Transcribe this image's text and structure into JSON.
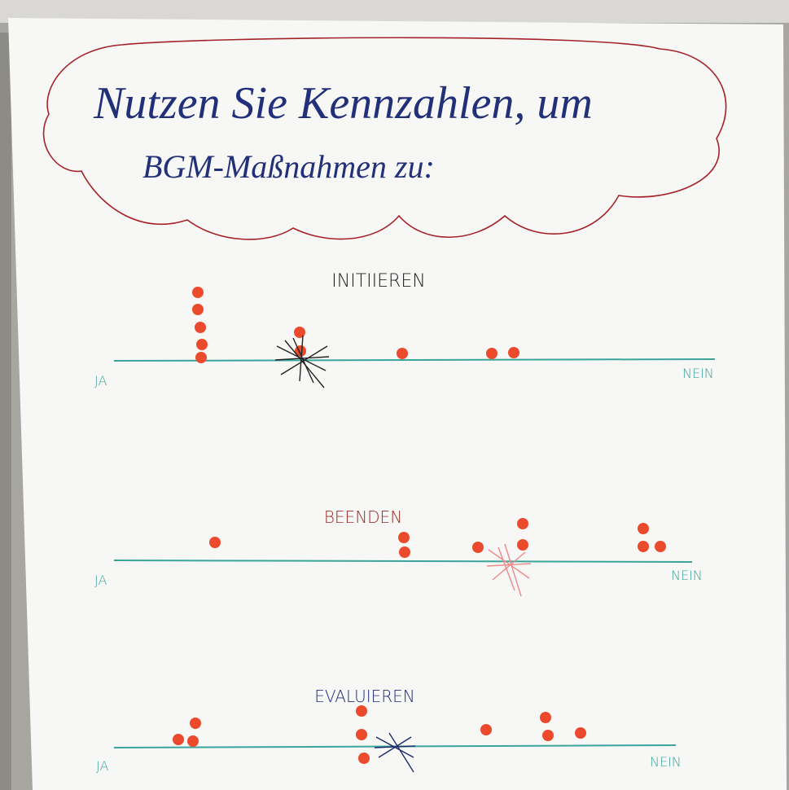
{
  "header": {
    "line1": "Nutzen Sie Kennzahlen, um",
    "line2": "BGM-Maßnahmen zu:"
  },
  "scales": [
    {
      "title": "INITIIEREN",
      "left": "JA",
      "right": "NEIN"
    },
    {
      "title": "BEENDEN",
      "left": "JA",
      "right": "NEIN"
    },
    {
      "title": "EVALUIEREN",
      "left": "JA",
      "right": "NEIN"
    }
  ]
}
